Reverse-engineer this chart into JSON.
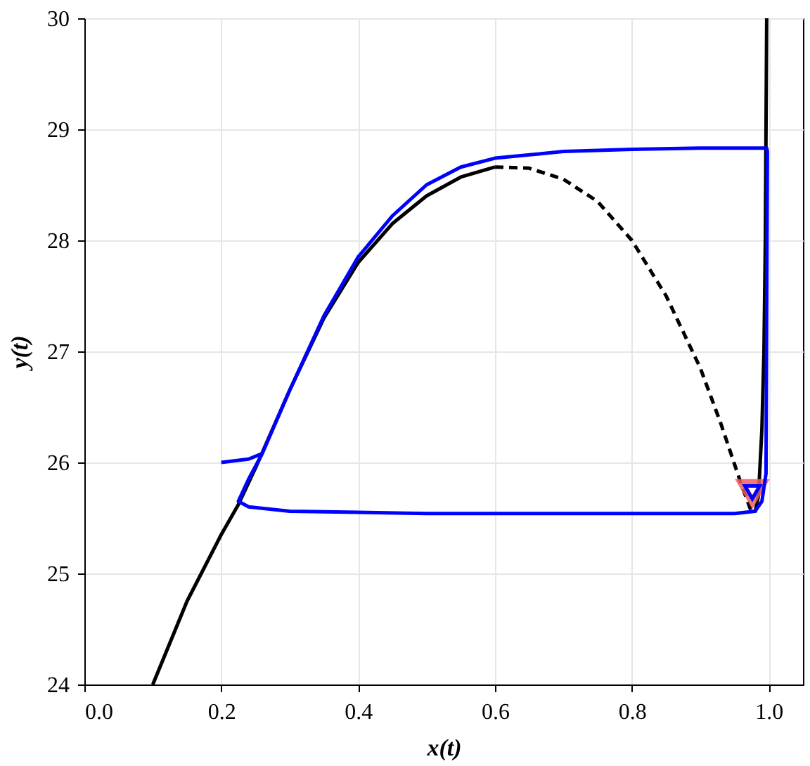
{
  "chart_data": {
    "type": "line",
    "xlabel": "x(t)",
    "ylabel": "y(t)",
    "xlim": [
      0,
      1.05
    ],
    "ylim": [
      24,
      30
    ],
    "xticks": [
      {
        "value": 0,
        "label": "0.0"
      },
      0.2,
      0.4,
      0.6,
      0.8,
      {
        "value": 1,
        "label": "1.0"
      }
    ],
    "yticks": [
      24,
      25,
      26,
      27,
      28,
      29,
      30
    ],
    "grid": true,
    "legend": false,
    "marker": "none",
    "series": [
      {
        "color": "#000000",
        "line_style": "solid",
        "x": [
          0.1,
          0.15,
          0.2,
          0.225,
          0.25,
          0.3,
          0.35,
          0.4,
          0.45,
          0.5,
          0.55,
          0.6
        ],
        "values": [
          24,
          24.75,
          25.35,
          25.62,
          25.95,
          26.65,
          27.3,
          27.8,
          28.15,
          28.4,
          28.57,
          28.66
        ]
      },
      {
        "color": "#000000",
        "line_style": "dashed",
        "x": [
          0.6,
          0.65,
          0.7,
          0.75,
          0.8,
          0.85,
          0.9,
          0.93,
          0.96,
          0.975
        ],
        "values": [
          28.66,
          28.65,
          28.55,
          28.35,
          28.0,
          27.5,
          26.85,
          26.35,
          25.8,
          25.55
        ]
      },
      {
        "color": "#000000",
        "line_style": "solid",
        "x": [
          0.98,
          0.985,
          0.99,
          0.993,
          0.995,
          0.997
        ],
        "values": [
          25.55,
          25.7,
          26.3,
          27.0,
          28.0,
          30
        ]
      },
      {
        "type": "scatter",
        "marker": "triangle",
        "color": "#f06060",
        "x": [
          0.976
        ],
        "values": [
          25.73
        ]
      },
      {
        "color": "#0000ff",
        "line_style": "solid",
        "x": [
          0.2,
          0.24,
          0.26,
          0.3,
          0.35,
          0.4,
          0.45,
          0.5,
          0.55,
          0.6,
          0.7,
          0.8,
          0.9,
          0.997,
          0.998,
          0.996,
          0.99,
          0.98,
          0.95,
          0.5,
          0.3,
          0.24,
          0.225,
          0.24,
          0.26
        ],
        "values": [
          26.0,
          26.03,
          26.08,
          26.65,
          27.32,
          27.85,
          28.22,
          28.5,
          28.66,
          28.74,
          28.8,
          28.82,
          28.83,
          28.83,
          28.8,
          25.9,
          25.65,
          25.56,
          25.54,
          25.54,
          25.56,
          25.6,
          25.65,
          25.85,
          26.08
        ]
      },
      {
        "type": "scatter",
        "marker": "triangle",
        "color": "#0000ff",
        "x": [
          0.976
        ],
        "values": [
          25.73
        ]
      }
    ]
  }
}
